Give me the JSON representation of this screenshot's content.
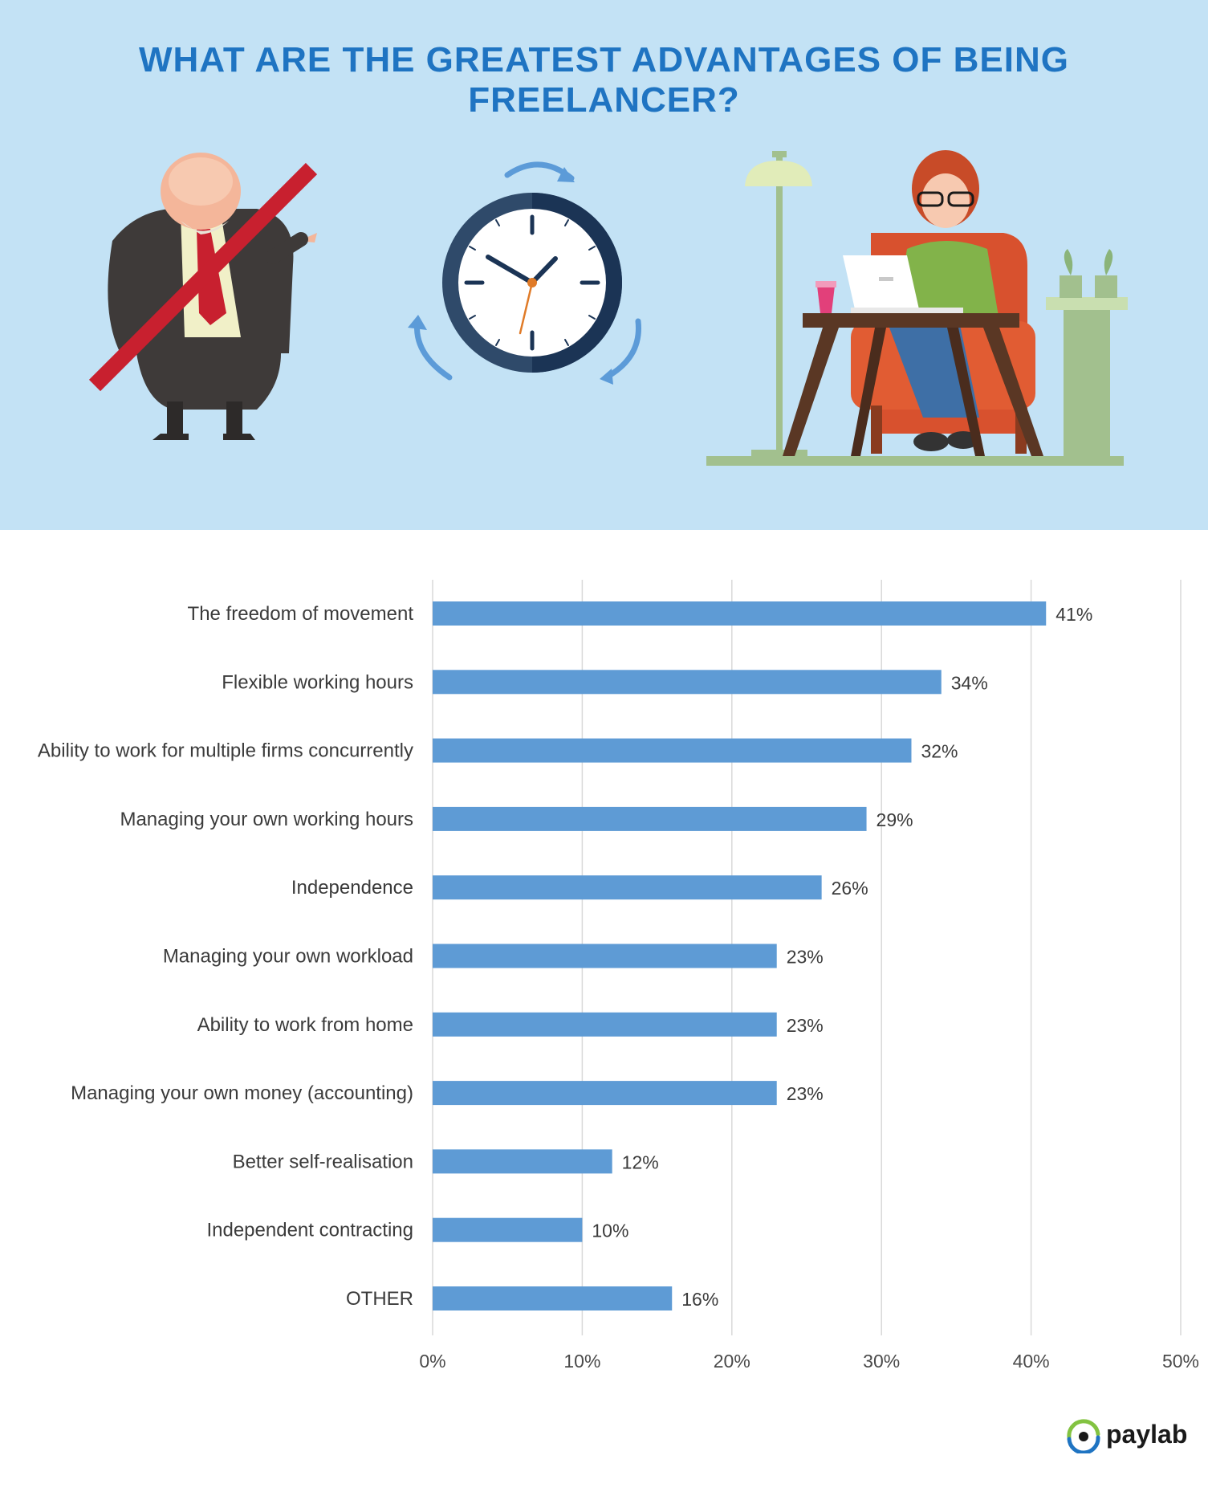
{
  "header": {
    "title": "WHAT ARE THE GREATEST ADVANTAGES OF BEING FREELANCER?"
  },
  "illustrations": {
    "boss_icon": "crossed-out-boss-icon",
    "clock_icon": "clock-with-arrows-icon",
    "freelancer_icon": "woman-with-laptop-icon"
  },
  "colors": {
    "hero_background": "#c3e2f5",
    "title": "#1f74c2",
    "bar": "#5e9bd5",
    "strike": "#c8202f"
  },
  "brand": {
    "name": "paylab",
    "logo_icon": "eye-logo-icon"
  },
  "chart_data": {
    "type": "bar",
    "orientation": "horizontal",
    "categories": [
      "The freedom of movement",
      "Flexible working hours",
      "Ability to work for multiple firms concurrently",
      "Managing your own working hours",
      "Independence",
      "Managing your own workload",
      "Ability to work from home",
      "Managing your own money (accounting)",
      "Better self-realisation",
      "Independent contracting",
      "OTHER"
    ],
    "values": [
      41,
      34,
      32,
      29,
      26,
      23,
      23,
      23,
      12,
      10,
      16
    ],
    "value_labels": [
      "41%",
      "34%",
      "32%",
      "29%",
      "26%",
      "23%",
      "23%",
      "23%",
      "12%",
      "10%",
      "16%"
    ],
    "x_ticks": [
      0,
      10,
      20,
      30,
      40,
      50
    ],
    "x_tick_labels": [
      "0%",
      "10%",
      "20%",
      "30%",
      "40%",
      "50%"
    ],
    "xlim": [
      0,
      50
    ],
    "grid": true,
    "legend": "none",
    "title": "",
    "xlabel": "",
    "ylabel": ""
  }
}
